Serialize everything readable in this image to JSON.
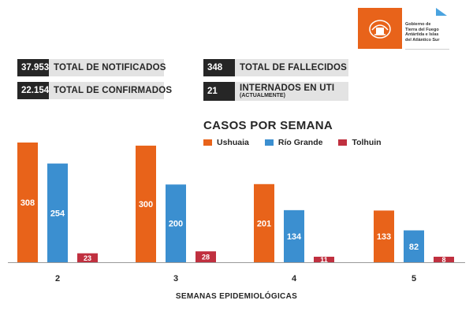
{
  "header": {
    "org_lines": [
      "Gobierno de",
      "Tierra del Fuego",
      "Antártida e Islas",
      "del Atlántico Sur"
    ],
    "brand_color": "#e8631a"
  },
  "stats": [
    {
      "value": "37.953",
      "label": "TOTAL DE NOTIFICADOS"
    },
    {
      "value": "22.154",
      "label": "TOTAL DE CONFIRMADOS"
    },
    {
      "value": "348",
      "label": "TOTAL DE FALLECIDOS"
    },
    {
      "value": "21",
      "label": "INTERNADOS EN UTI",
      "sublabel": "(ACTUALMENTE)"
    }
  ],
  "chart_data": {
    "type": "bar",
    "title": "CASOS POR SEMANA",
    "xlabel": "SEMANAS EPIDEMIOLÓGICAS",
    "ylabel": "",
    "categories": [
      "2",
      "3",
      "4",
      "5"
    ],
    "series": [
      {
        "name": "Ushuaia",
        "color": "#e8631a",
        "values": [
          308,
          300,
          201,
          133
        ]
      },
      {
        "name": "Río Grande",
        "color": "#3b8fd0",
        "values": [
          254,
          200,
          134,
          82
        ]
      },
      {
        "name": "Tolhuin",
        "color": "#c0303f",
        "values": [
          23,
          28,
          11,
          8
        ]
      }
    ],
    "ylim": [
      0,
      310
    ],
    "grid": false,
    "legend": "top"
  }
}
